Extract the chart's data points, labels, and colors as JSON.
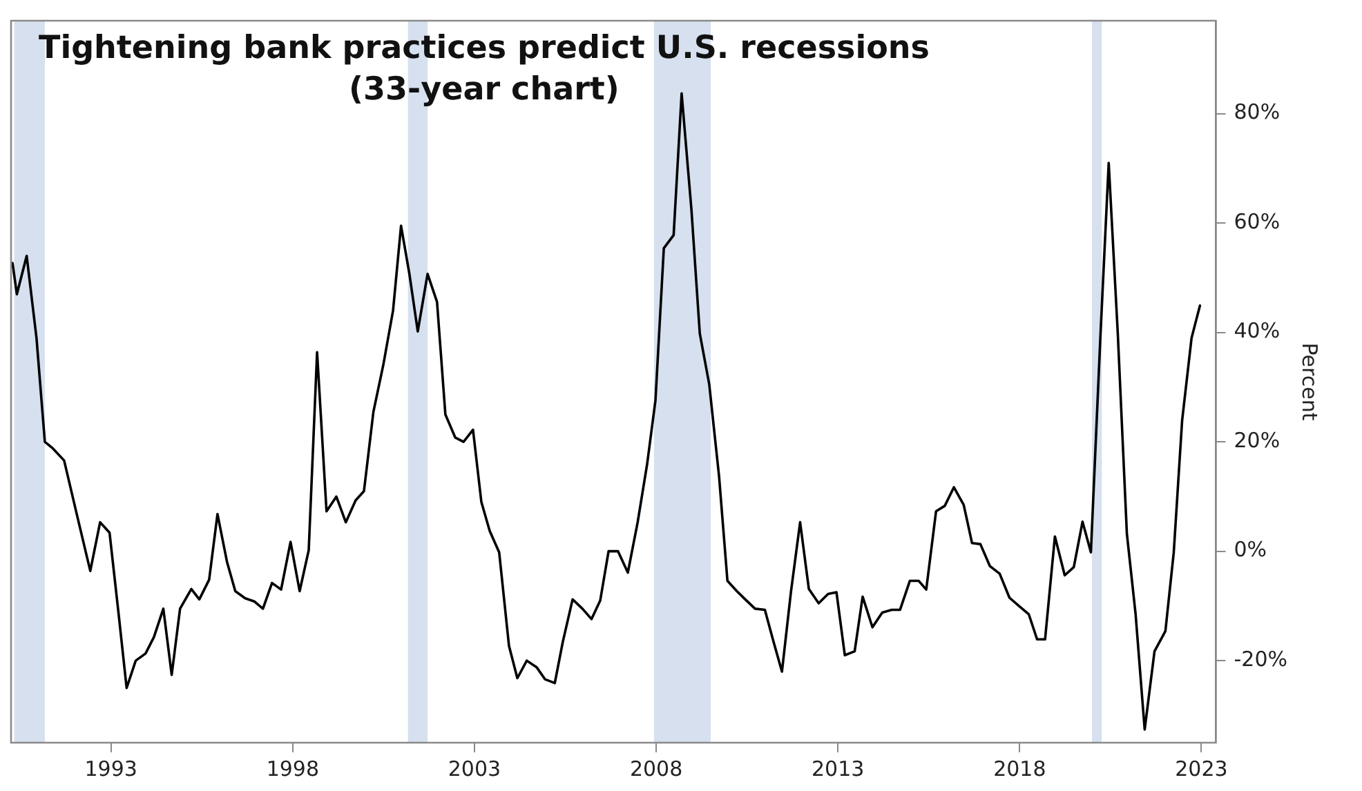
{
  "chart_data": {
    "type": "line",
    "title": "Tightening bank practices predict U.S. recessions",
    "subtitle": "(33-year chart)",
    "ylabel": "Percent",
    "x": [
      1990.29,
      1990.41,
      1990.68,
      1990.95,
      1991.18,
      1991.4,
      1991.71,
      1992.05,
      1992.43,
      1992.7,
      1992.96,
      1993.21,
      1993.43,
      1993.68,
      1993.95,
      1994.18,
      1994.44,
      1994.67,
      1994.9,
      1995.21,
      1995.43,
      1995.7,
      1995.93,
      1996.19,
      1996.42,
      1996.69,
      1996.95,
      1997.18,
      1997.43,
      1997.68,
      1997.94,
      1998.19,
      1998.44,
      1998.67,
      1998.93,
      1999.2,
      1999.46,
      1999.73,
      1999.96,
      2000.22,
      2000.49,
      2000.76,
      2000.98,
      2001.21,
      2001.44,
      2001.71,
      2001.97,
      2002.2,
      2002.47,
      2002.7,
      2002.96,
      2003.19,
      2003.42,
      2003.68,
      2003.95,
      2004.18,
      2004.44,
      2004.71,
      2004.94,
      2005.21,
      2005.43,
      2005.7,
      2005.97,
      2006.22,
      2006.46,
      2006.69,
      2006.95,
      2007.22,
      2007.49,
      2007.75,
      2007.98,
      2008.21,
      2008.48,
      2008.7,
      2008.97,
      2009.2,
      2009.46,
      2009.73,
      2009.96,
      2010.22,
      2010.45,
      2010.72,
      2010.99,
      2011.21,
      2011.46,
      2011.71,
      2011.96,
      2012.2,
      2012.47,
      2012.73,
      2012.96,
      2013.19,
      2013.46,
      2013.68,
      2013.95,
      2014.22,
      2014.48,
      2014.71,
      2014.98,
      2015.22,
      2015.43,
      2015.7,
      2015.94,
      2016.19,
      2016.46,
      2016.69,
      2016.92,
      2017.18,
      2017.45,
      2017.72,
      2017.98,
      2018.25,
      2018.48,
      2018.7,
      2018.97,
      2019.24,
      2019.49,
      2019.73,
      2019.96,
      2020.22,
      2020.45,
      2020.7,
      2020.95,
      2021.19,
      2021.44,
      2021.71,
      2022.01,
      2022.24,
      2022.47,
      2022.73,
      2022.96
    ],
    "series": [
      {
        "color": "#000000",
        "values": [
          52.7,
          47,
          54,
          39,
          20,
          18.8,
          16.6,
          7,
          -3.6,
          5.3,
          3.4,
          -11.5,
          -25,
          -20,
          -18.7,
          -15.7,
          -10.5,
          -22.6,
          -10.5,
          -6.9,
          -8.8,
          -5.2,
          6.8,
          -1.9,
          -7.3,
          -8.6,
          -9.2,
          -10.5,
          -5.8,
          -7,
          1.7,
          -7.3,
          0.2,
          36.4,
          7.3,
          10,
          5.3,
          9.3,
          11,
          25.5,
          34,
          44,
          59.5,
          50.7,
          40.2,
          50.7,
          45.6,
          25,
          20.8,
          20,
          22.2,
          9,
          3.7,
          -0.2,
          -17.3,
          -23.2,
          -20,
          -21.2,
          -23.4,
          -24.1,
          -16.6,
          -8.8,
          -10.5,
          -12.4,
          -9,
          0,
          0,
          -3.9,
          5.3,
          15.9,
          27.6,
          55.4,
          57.8,
          83.7,
          62.4,
          39.8,
          30.5,
          13.7,
          -5.4,
          -7.3,
          -8.8,
          -10.5,
          -10.7,
          -16.1,
          -22,
          -7.3,
          5.3,
          -6.9,
          -9.5,
          -7.8,
          -7.5,
          -19,
          -18.3,
          -8.3,
          -13.9,
          -11.2,
          -10.7,
          -10.7,
          -5.4,
          -5.4,
          -7,
          7.3,
          8.3,
          11.7,
          8.5,
          1.5,
          1.3,
          -2.7,
          -4.1,
          -8.5,
          -10,
          -11.5,
          -16.1,
          -16.1,
          2.7,
          -4.4,
          -2.9,
          5.4,
          -0.2,
          39,
          71,
          39.8,
          3.2,
          -11.5,
          -32.6,
          -18.3,
          -14.6,
          -0.2,
          23.9,
          39,
          44.9
        ]
      }
    ],
    "xlim": [
      1990.25,
      2023.4
    ],
    "xticks": [
      1993,
      1998,
      2003,
      2008,
      2013,
      2018,
      2023
    ],
    "ylim": [
      -35,
      97
    ],
    "yticks": [
      {
        "value": -20,
        "label": "-20%"
      },
      {
        "value": 0,
        "label": "0%"
      },
      {
        "value": 20,
        "label": "20%"
      },
      {
        "value": 40,
        "label": "40%"
      },
      {
        "value": 60,
        "label": "60%"
      },
      {
        "value": 80,
        "label": "80%"
      }
    ],
    "bands": [
      {
        "axis": "x",
        "from": 1990.34,
        "to": 1991.18,
        "color": "#d6e0ee"
      },
      {
        "axis": "x",
        "from": 2001.17,
        "to": 2001.71,
        "color": "#d6e0ee"
      },
      {
        "axis": "x",
        "from": 2007.94,
        "to": 2009.5,
        "color": "#d6e0ee"
      },
      {
        "axis": "x",
        "from": 2019.99,
        "to": 2020.26,
        "color": "#d6e0ee"
      }
    ],
    "grid": false,
    "legend": false,
    "marker": "none",
    "line_style": "solid"
  }
}
